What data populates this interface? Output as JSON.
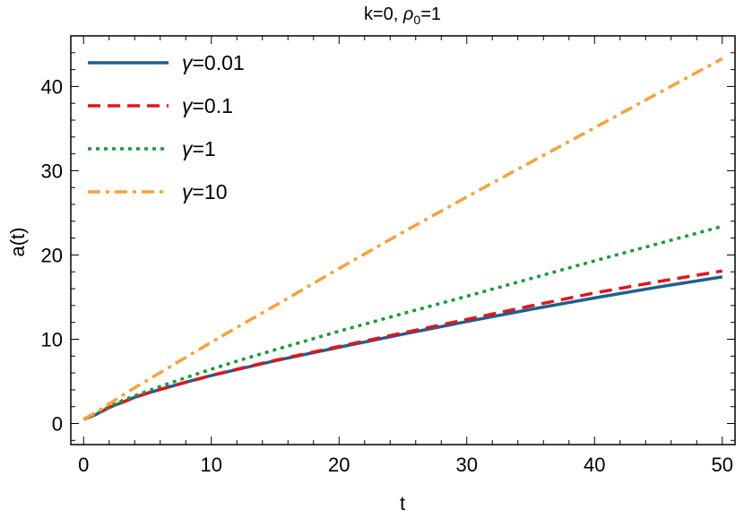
{
  "chart_data": {
    "type": "line",
    "title": "k=0, ρ0=1",
    "title_main": "k=0, ",
    "title_rho": "ρ",
    "title_sub": "0",
    "title_tail": "=1",
    "xlabel": "t",
    "ylabel": "a(t)",
    "xlim": [
      -1,
      51
    ],
    "ylim": [
      -2.5,
      46
    ],
    "xticks": [
      0,
      10,
      20,
      30,
      40,
      50
    ],
    "yticks": [
      0,
      10,
      20,
      30,
      40
    ],
    "legend_position": "top-left",
    "x": [
      0,
      1,
      2,
      3,
      4,
      5,
      6,
      8,
      10,
      12,
      15,
      20,
      25,
      30,
      35,
      40,
      45,
      50
    ],
    "series": [
      {
        "name": "γ=0.01",
        "symbol": "γ",
        "label_value": "=0.01",
        "color": "#1f5f8f",
        "style": "solid",
        "values": [
          0.5,
          1.1,
          1.9,
          2.5,
          3.1,
          3.6,
          4.05,
          4.9,
          5.7,
          6.4,
          7.45,
          9.05,
          10.6,
          12.1,
          13.55,
          14.9,
          16.2,
          17.4
        ]
      },
      {
        "name": "γ=0.1",
        "symbol": "γ",
        "label_value": "=0.1",
        "color": "#e3141c",
        "style": "dashed",
        "values": [
          0.5,
          1.1,
          1.9,
          2.5,
          3.1,
          3.6,
          4.05,
          4.9,
          5.7,
          6.45,
          7.5,
          9.15,
          10.75,
          12.35,
          13.95,
          15.5,
          16.85,
          18.1
        ]
      },
      {
        "name": "γ=1",
        "symbol": "γ",
        "label_value": "=1",
        "color": "#1c9a3c",
        "style": "dotted",
        "values": [
          0.5,
          1.15,
          2.0,
          2.7,
          3.3,
          3.85,
          4.4,
          5.45,
          6.45,
          7.4,
          8.75,
          10.95,
          13.05,
          15.1,
          17.2,
          19.3,
          21.35,
          23.4
        ]
      },
      {
        "name": "γ=10",
        "symbol": "γ",
        "label_value": "=10",
        "color": "#f7a23a",
        "style": "dashdot",
        "values": [
          0.5,
          1.35,
          2.35,
          3.3,
          4.25,
          5.15,
          6.05,
          7.85,
          9.65,
          11.4,
          14.0,
          18.4,
          22.7,
          26.9,
          31.0,
          35.1,
          39.2,
          43.3
        ]
      }
    ]
  }
}
